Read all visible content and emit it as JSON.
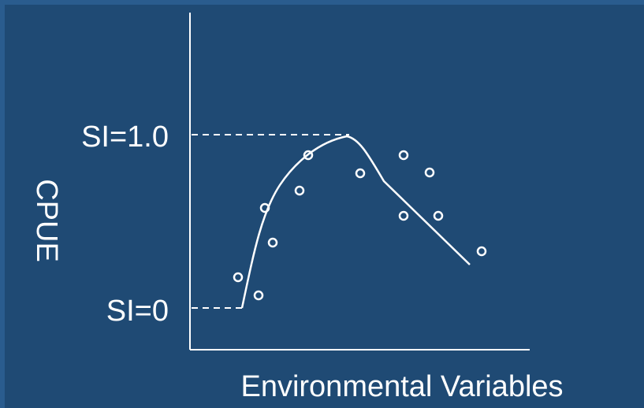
{
  "chart_data": {
    "type": "scatter",
    "title": "",
    "xlabel": "Environmental Variables",
    "ylabel": "CPUE",
    "y_markers": [
      {
        "label": "SI=1.0",
        "value": 1.0
      },
      {
        "label": "SI=0",
        "value": 0
      }
    ],
    "grid": false,
    "colors": {
      "background": "#1f4a74",
      "border": "#2a5c8e",
      "foreground": "#ffffff"
    }
  }
}
